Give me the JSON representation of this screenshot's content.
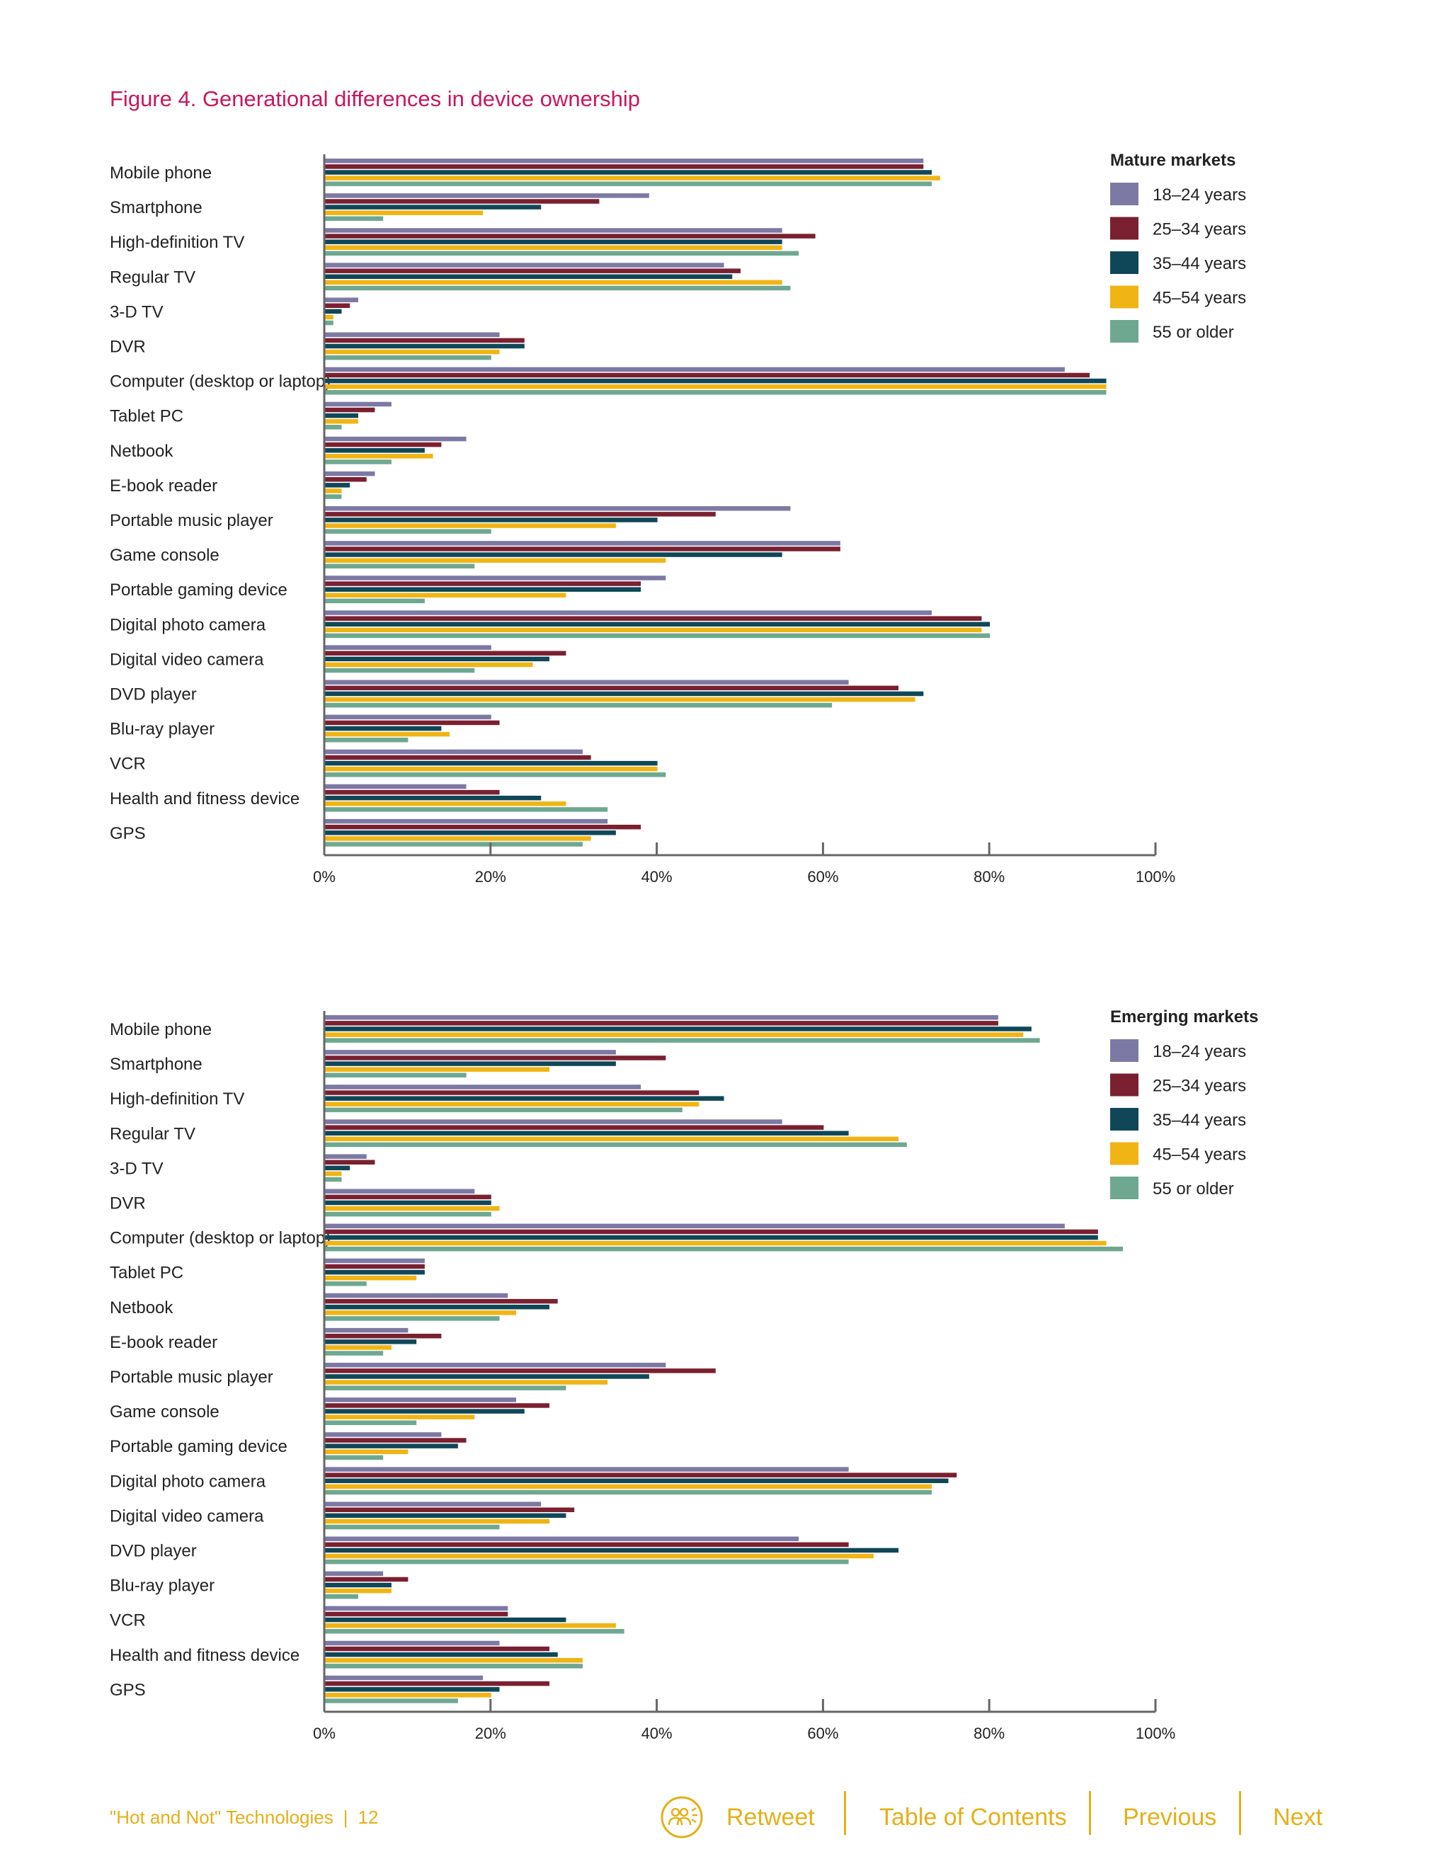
{
  "figure_title": "Figure 4. Generational differences in device ownership",
  "colors": {
    "series": [
      "#7c7aa4",
      "#7a2030",
      "#0f4758",
      "#f0b414",
      "#6ea890"
    ],
    "axis": "#666666",
    "accent": "#e3b019",
    "title": "#c8175d"
  },
  "chart_data": [
    {
      "type": "bar",
      "orientation": "horizontal",
      "legend_title": "Mature markets",
      "legend_placement": "top-right",
      "categories": [
        "Mobile phone",
        "Smartphone",
        "High-definition TV",
        "Regular TV",
        "3-D TV",
        "DVR",
        "Computer (desktop or laptop)",
        "Tablet PC",
        "Netbook",
        "E-book reader",
        "Portable music player",
        "Game console",
        "Portable gaming device",
        "Digital photo camera",
        "Digital video camera",
        "DVD player",
        "Blu-ray player",
        "VCR",
        "Health and fitness device",
        "GPS"
      ],
      "series": [
        {
          "name": "18–24 years",
          "values": [
            72,
            39,
            55,
            48,
            4,
            21,
            89,
            8,
            17,
            6,
            56,
            62,
            41,
            73,
            20,
            63,
            20,
            31,
            17,
            34
          ]
        },
        {
          "name": "25–34 years",
          "values": [
            72,
            33,
            59,
            50,
            3,
            24,
            92,
            6,
            14,
            5,
            47,
            62,
            38,
            79,
            29,
            69,
            21,
            32,
            21,
            38
          ]
        },
        {
          "name": "35–44 years",
          "values": [
            73,
            26,
            55,
            49,
            2,
            24,
            94,
            4,
            12,
            3,
            40,
            55,
            38,
            80,
            27,
            72,
            14,
            40,
            26,
            35
          ]
        },
        {
          "name": "45–54 years",
          "values": [
            74,
            19,
            55,
            55,
            1,
            21,
            94,
            4,
            13,
            2,
            35,
            41,
            29,
            79,
            25,
            71,
            15,
            40,
            29,
            32
          ]
        },
        {
          "name": "55 or older",
          "values": [
            73,
            7,
            57,
            56,
            1,
            20,
            94,
            2,
            8,
            2,
            20,
            18,
            12,
            80,
            18,
            61,
            10,
            41,
            34,
            31
          ]
        }
      ],
      "xlim": [
        0,
        100
      ],
      "xticks": [
        "0%",
        "20%",
        "40%",
        "60%",
        "80%",
        "100%"
      ],
      "grid": false
    },
    {
      "type": "bar",
      "orientation": "horizontal",
      "legend_title": "Emerging markets",
      "legend_placement": "top-right",
      "categories": [
        "Mobile phone",
        "Smartphone",
        "High-definition TV",
        "Regular  TV",
        "3-D TV",
        "DVR",
        "Computer (desktop or laptop)",
        "Tablet PC",
        "Netbook",
        "E-book reader",
        "Portable music player",
        "Game console",
        "Portable gaming device",
        "Digital photo camera",
        "Digital video camera",
        "DVD player",
        "Blu-ray player",
        "VCR",
        "Health and fitness device",
        "GPS"
      ],
      "series": [
        {
          "name": "18–24 years",
          "values": [
            81,
            35,
            38,
            55,
            5,
            18,
            89,
            12,
            22,
            10,
            41,
            23,
            14,
            63,
            26,
            57,
            7,
            22,
            21,
            19
          ]
        },
        {
          "name": "25–34 years",
          "values": [
            81,
            41,
            45,
            60,
            6,
            20,
            93,
            12,
            28,
            14,
            47,
            27,
            17,
            76,
            30,
            63,
            10,
            22,
            27,
            27
          ]
        },
        {
          "name": "35–44 years",
          "values": [
            85,
            35,
            48,
            63,
            3,
            20,
            93,
            12,
            27,
            11,
            39,
            24,
            16,
            75,
            29,
            69,
            8,
            29,
            28,
            21
          ]
        },
        {
          "name": "45–54 years",
          "values": [
            84,
            27,
            45,
            69,
            2,
            21,
            94,
            11,
            23,
            8,
            34,
            18,
            10,
            73,
            27,
            66,
            8,
            35,
            31,
            20
          ]
        },
        {
          "name": "55 or older",
          "values": [
            86,
            17,
            43,
            70,
            2,
            20,
            96,
            5,
            21,
            7,
            29,
            11,
            7,
            73,
            21,
            63,
            4,
            36,
            31,
            16
          ]
        }
      ],
      "xlim": [
        0,
        100
      ],
      "xticks": [
        "0%",
        "20%",
        "40%",
        "60%",
        "80%",
        "100%"
      ],
      "grid": false
    }
  ],
  "footer": {
    "doc_title": "\"Hot and Not\" Technologies",
    "separator": "|",
    "page_number": "12",
    "nav": {
      "retweet": "Retweet",
      "toc": "Table of Contents",
      "previous": "Previous",
      "next": "Next"
    },
    "icons": {
      "retweet": "people-icon"
    }
  }
}
